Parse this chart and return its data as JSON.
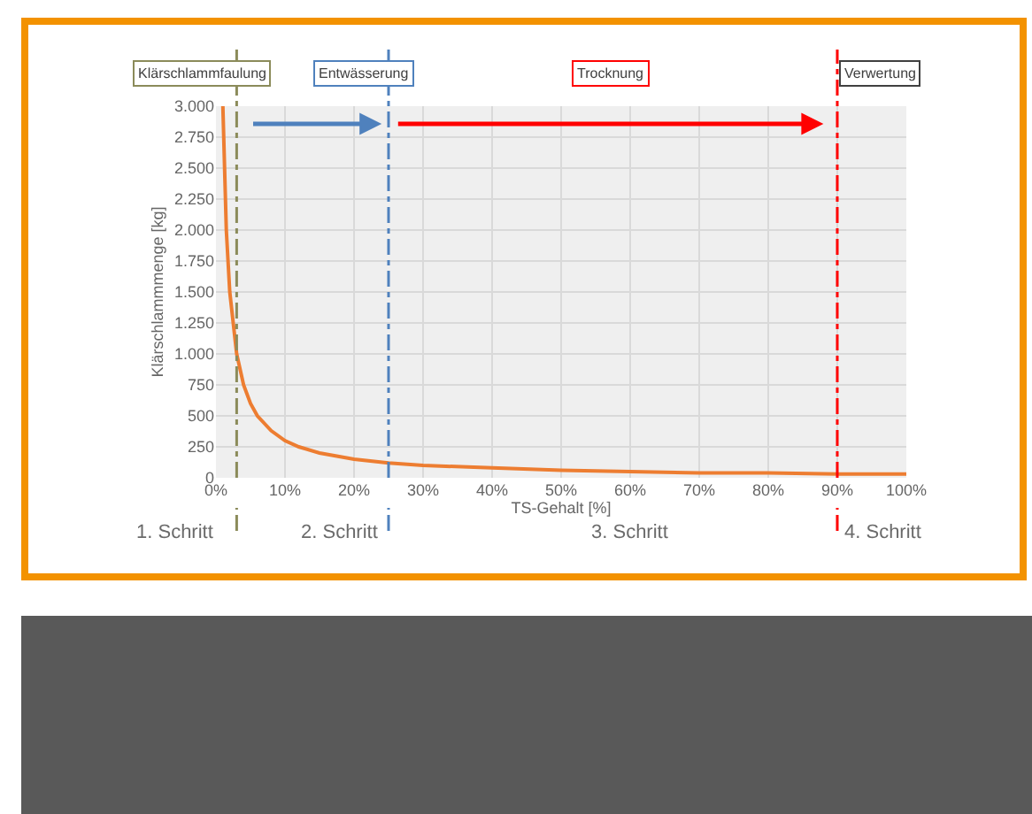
{
  "chart_data": {
    "type": "line",
    "xlabel": "TS-Gehalt [%]",
    "ylabel": "Klärschlammmenge [kg]",
    "x": [
      1,
      1.5,
      2,
      3,
      4,
      5,
      6,
      8,
      10,
      12,
      15,
      20,
      25,
      30,
      40,
      50,
      60,
      70,
      80,
      90,
      100
    ],
    "series": [
      {
        "color": "#ed7d31",
        "values": [
          3000,
          2000,
          1500,
          1000,
          750,
          600,
          500,
          380,
          300,
          250,
          200,
          150,
          120,
          100,
          80,
          60,
          50,
          40,
          40,
          30,
          30
        ]
      }
    ],
    "xlim": [
      0,
      100
    ],
    "ylim": [
      0,
      3000
    ],
    "xticks": [
      {
        "value": 0,
        "label": "0%"
      },
      {
        "value": 10,
        "label": "10%"
      },
      {
        "value": 20,
        "label": "20%"
      },
      {
        "value": 30,
        "label": "30%"
      },
      {
        "value": 40,
        "label": "40%"
      },
      {
        "value": 50,
        "label": "50%"
      },
      {
        "value": 60,
        "label": "60%"
      },
      {
        "value": 70,
        "label": "70%"
      },
      {
        "value": 80,
        "label": "80%"
      },
      {
        "value": 90,
        "label": "90%"
      },
      {
        "value": 100,
        "label": "100%"
      }
    ],
    "yticks": [
      0,
      250,
      500,
      750,
      {
        "value": 1000,
        "label": "1.000"
      },
      {
        "value": 1250,
        "label": "1.250"
      },
      {
        "value": 1500,
        "label": "1.500"
      },
      {
        "value": 1750,
        "label": "1.750"
      },
      {
        "value": 2000,
        "label": "2.000"
      },
      {
        "value": 2250,
        "label": "2.250"
      },
      {
        "value": 2500,
        "label": "2.500"
      },
      {
        "value": 2750,
        "label": "2.750"
      },
      {
        "value": 3000,
        "label": "3.000"
      }
    ],
    "grid": true,
    "marker": "none",
    "line_style": "solid",
    "ref_lines": [
      {
        "axis": "x",
        "value": 3,
        "color": "#8b8b5a",
        "line_style": "dashed"
      },
      {
        "axis": "x",
        "value": 25,
        "color": "#4f81bd",
        "line_style": "dashed"
      },
      {
        "axis": "x",
        "value": 90,
        "color": "#ff0000",
        "line_style": "dashed"
      }
    ],
    "annotations": [
      "Klärschlammfaulung",
      "Entwässerung",
      "Trocknung",
      "Verwertung",
      "1. Schritt",
      "2. Schritt",
      "3. Schritt",
      "4. Schritt"
    ]
  }
}
